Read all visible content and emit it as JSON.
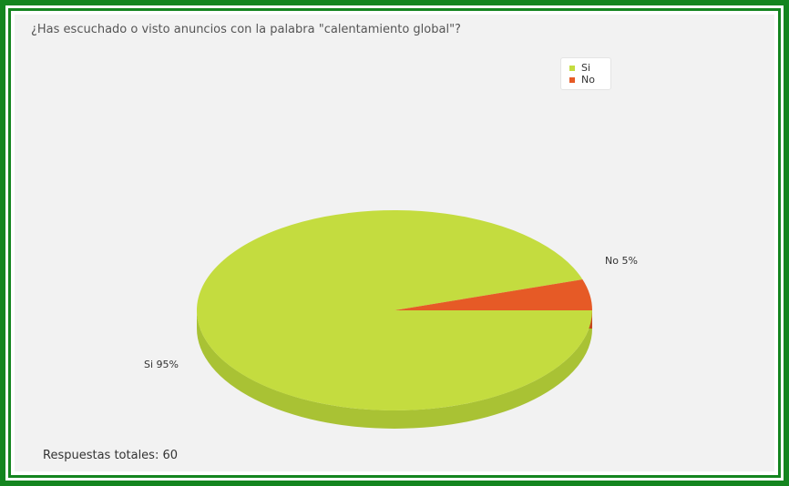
{
  "title": "¿Has escuchado o visto anuncios con la palabra \"calentamiento global\"?",
  "total_label": "Respuestas totales: 60",
  "colors": {
    "frame": "#14851f",
    "background": "#f2f2f2"
  },
  "chart_data": {
    "type": "pie",
    "title": "¿Has escuchado o visto anuncios con la palabra \"calentamiento global\"?",
    "legend_position": "top-right",
    "slices": [
      {
        "name": "Si",
        "value": 95,
        "label": "Si  95%",
        "color": "#c4dc3f",
        "side_color": "#a9c234"
      },
      {
        "name": "No",
        "value": 5,
        "label": "No  5%",
        "color": "#e65a26",
        "side_color": "#c4481b"
      }
    ]
  }
}
